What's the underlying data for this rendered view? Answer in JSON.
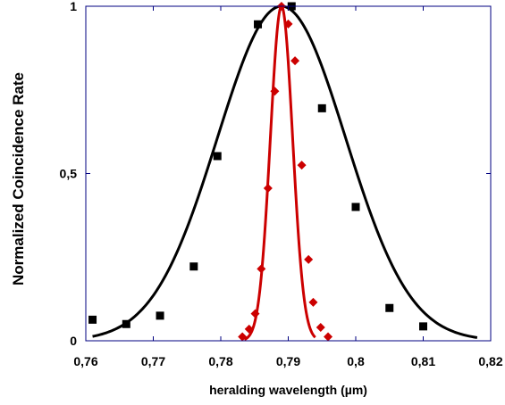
{
  "chart_data": {
    "type": "scatter",
    "title": "",
    "xlabel": "heralding wavelength (µm)",
    "ylabel": "Normalized Coincidence Rate",
    "xlim": [
      0.76,
      0.82
    ],
    "ylim": [
      0,
      1
    ],
    "x_ticks": [
      0.76,
      0.77,
      0.78,
      0.79,
      0.8,
      0.81,
      0.82
    ],
    "x_tick_labels": [
      "0,76",
      "0,77",
      "0,78",
      "0,79",
      "0,8",
      "0,81",
      "0,82"
    ],
    "y_ticks": [
      0,
      0.5,
      1
    ],
    "y_tick_labels": [
      "0",
      "0,5",
      "1"
    ],
    "grid": false,
    "legend": "none",
    "series": [
      {
        "marker": "square",
        "color": "#000000",
        "points": [
          [
            0.761,
            0.063
          ],
          [
            0.766,
            0.05
          ],
          [
            0.771,
            0.075
          ],
          [
            0.776,
            0.222
          ],
          [
            0.7795,
            0.552
          ],
          [
            0.7855,
            0.946
          ],
          [
            0.7905,
            1.0
          ],
          [
            0.795,
            0.695
          ],
          [
            0.8,
            0.4
          ],
          [
            0.805,
            0.098
          ],
          [
            0.81,
            0.043
          ]
        ]
      },
      {
        "marker": "diamond",
        "color": "#cc0000",
        "points": [
          [
            0.7832,
            0.012
          ],
          [
            0.7842,
            0.035
          ],
          [
            0.7851,
            0.081
          ],
          [
            0.786,
            0.215
          ],
          [
            0.787,
            0.456
          ],
          [
            0.788,
            0.746
          ],
          [
            0.789,
            1.0
          ],
          [
            0.79,
            0.947
          ],
          [
            0.791,
            0.837
          ],
          [
            0.792,
            0.525
          ],
          [
            0.793,
            0.243
          ],
          [
            0.7937,
            0.115
          ],
          [
            0.7948,
            0.04
          ],
          [
            0.7959,
            0.012
          ]
        ]
      }
    ],
    "fits": [
      {
        "type": "gaussian",
        "color": "#000000",
        "center": 0.789,
        "sigma": 0.0095,
        "amplitude": 1.0,
        "x_range": [
          0.761,
          0.818
        ]
      },
      {
        "type": "gaussian",
        "color": "#cc0000",
        "center": 0.789,
        "sigma": 0.00165,
        "amplitude": 1.0,
        "x_range": [
          0.7835,
          0.794
        ]
      }
    ]
  }
}
